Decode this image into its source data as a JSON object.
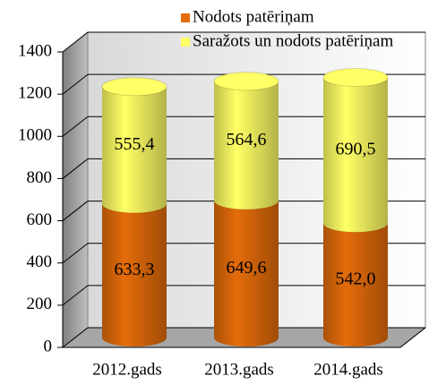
{
  "chart_data": {
    "type": "bar",
    "stacked": true,
    "categories": [
      "2012.gads",
      "2013.gads",
      "2014.gads"
    ],
    "series": [
      {
        "name": "Nodots patēriņam",
        "color": "#e46c0a",
        "values": [
          633.3,
          649.6,
          542.0
        ],
        "value_labels": [
          "633,3",
          "649,6",
          "542,0"
        ]
      },
      {
        "name": "Saražots un nodots patēriņam",
        "color": "#ffff66",
        "values": [
          555.4,
          564.6,
          690.5
        ],
        "value_labels": [
          "555,4",
          "564,6",
          "690,5"
        ]
      }
    ],
    "ylim": [
      0,
      1400
    ],
    "yticks": [
      0,
      200,
      400,
      600,
      800,
      1000,
      1200,
      1400
    ],
    "grid": true,
    "legend": "top-right"
  }
}
